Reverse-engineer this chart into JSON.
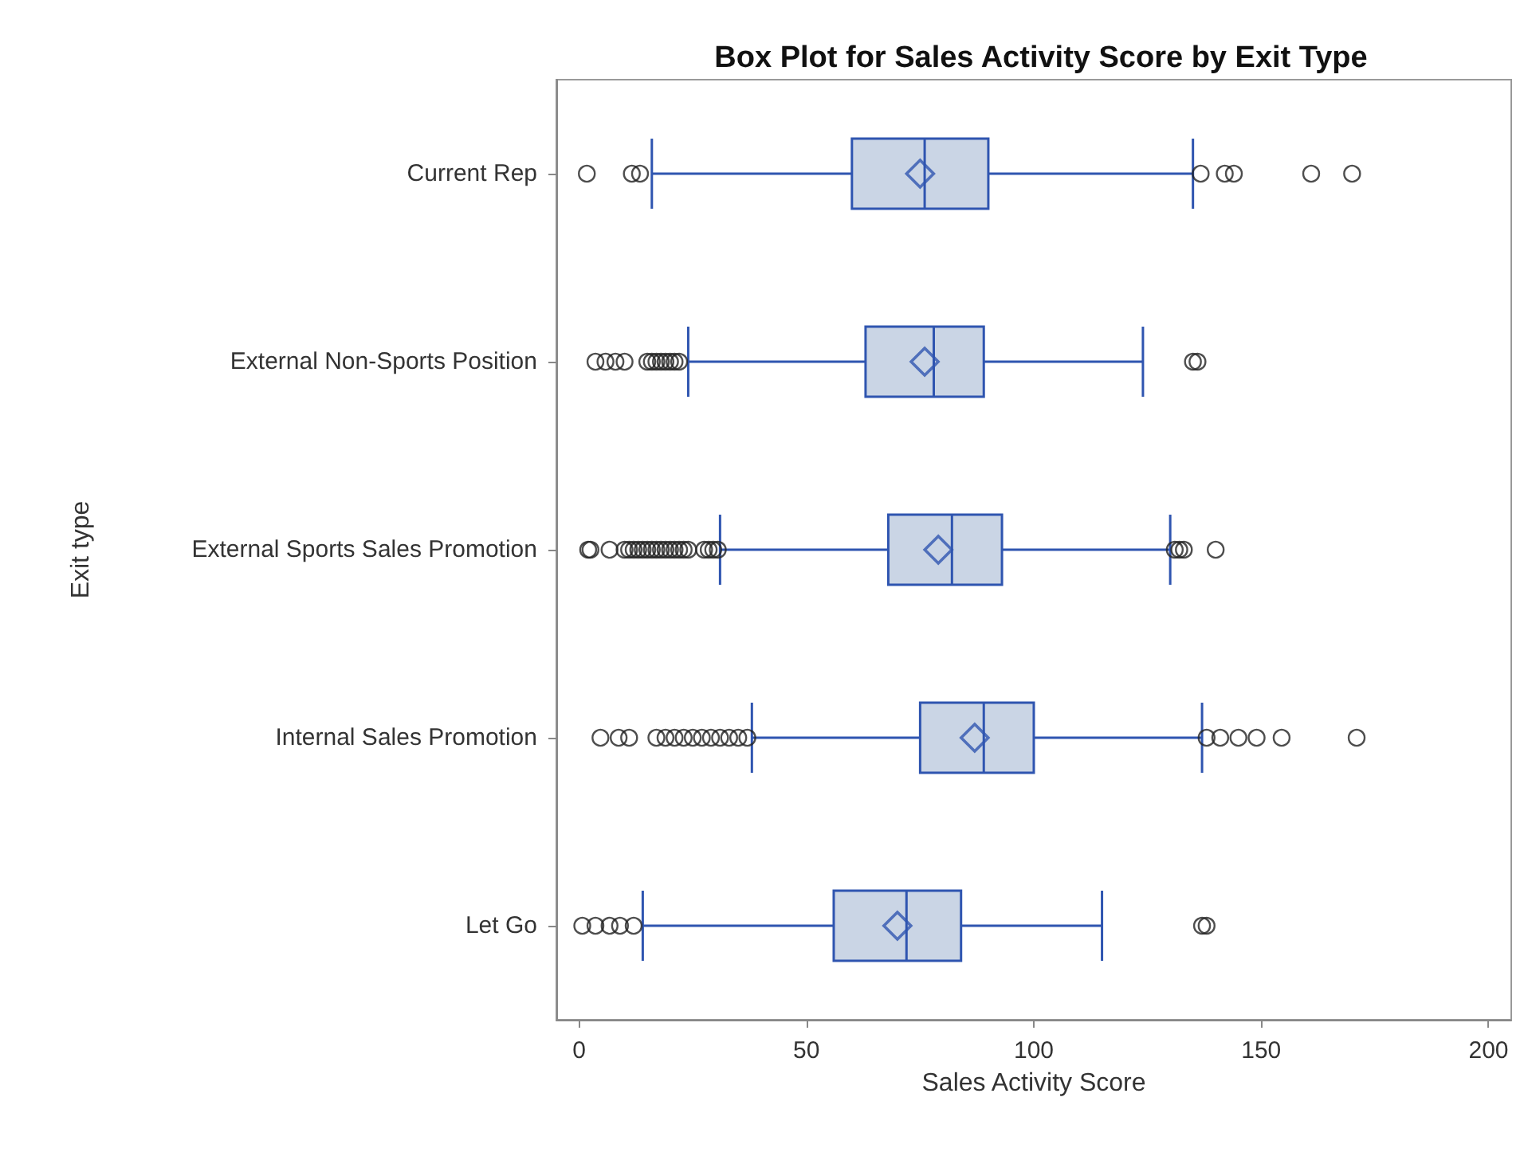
{
  "chart_data": {
    "type": "box",
    "title": "Box Plot for Sales Activity Score by Exit Type",
    "xlabel": "Sales Activity Score",
    "ylabel": "Exit type",
    "orientation": "horizontal",
    "categories": [
      "Current Rep",
      "External Non-Sports Position",
      "External Sports Sales Promotion",
      "Internal Sales Promotion",
      "Let Go"
    ],
    "xlim": [
      -5,
      205
    ],
    "xticks": [
      0,
      50,
      100,
      150,
      200
    ],
    "grid": false,
    "series": [
      {
        "color": "#2f55b0",
        "boxes": [
          {
            "low": 16,
            "q1": 60,
            "median": 76,
            "q3": 90,
            "high": 135,
            "mean": 75,
            "outliers": [
              1.7,
              11.6,
              13.4,
              136.7,
              142,
              144,
              161,
              170
            ]
          },
          {
            "low": 24,
            "q1": 63,
            "median": 78,
            "q3": 89,
            "high": 124,
            "mean": 76,
            "outliers": [
              3.6,
              5.8,
              8,
              10,
              15,
              16,
              17,
              18,
              19,
              20,
              21,
              22,
              135,
              136
            ]
          },
          {
            "low": 31,
            "q1": 68,
            "median": 82,
            "q3": 93,
            "high": 130,
            "mean": 79,
            "outliers": [
              2,
              2.5,
              6.7,
              10,
              11,
              12,
              13,
              14,
              15,
              16,
              17,
              18,
              19,
              20,
              21,
              22,
              23,
              24,
              27.5,
              28.5,
              29.5,
              30.5,
              131,
              132,
              133,
              140
            ]
          },
          {
            "low": 38,
            "q1": 75,
            "median": 89,
            "q3": 100,
            "high": 137,
            "mean": 87,
            "outliers": [
              4.7,
              8.7,
              11,
              17,
              19,
              21,
              23,
              25,
              27,
              29,
              31,
              33,
              35,
              37,
              138,
              141,
              145,
              149,
              154.5,
              171
            ]
          },
          {
            "low": 14,
            "q1": 56,
            "median": 72,
            "q3": 84,
            "high": 115,
            "mean": 70,
            "outliers": [
              0.7,
              3.6,
              6.7,
              9,
              12,
              137,
              138
            ]
          }
        ]
      }
    ]
  }
}
